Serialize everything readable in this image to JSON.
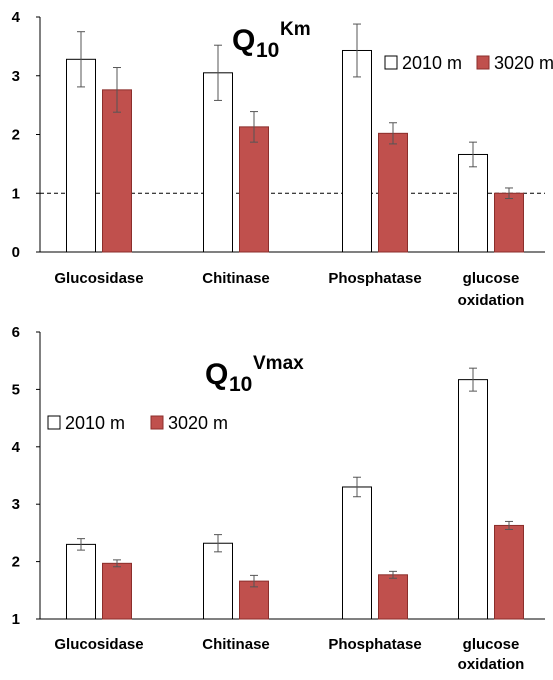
{
  "chart_data": [
    {
      "type": "bar",
      "title": "Q10Km",
      "title_parts": {
        "main": "Q",
        "sub": "10",
        "sup": "Km"
      },
      "categories": [
        "Glucosidase",
        "Chitinase",
        "Phosphatase",
        "glucose oxidation"
      ],
      "series": [
        {
          "name": "2010 m",
          "values": [
            3.28,
            3.05,
            3.43,
            1.66
          ],
          "errors": [
            0.47,
            0.47,
            0.45,
            0.21
          ],
          "color": "#ffffff"
        },
        {
          "name": "3020 m",
          "values": [
            2.76,
            2.13,
            2.02,
            1.0
          ],
          "errors": [
            0.38,
            0.26,
            0.18,
            0.09
          ],
          "color": "#c0504d"
        }
      ],
      "ylim": [
        0,
        4
      ],
      "yticks": [
        "0",
        "1",
        "2",
        "3",
        "4"
      ],
      "reference_line": 1,
      "legend_position": "right",
      "grid": false
    },
    {
      "type": "bar",
      "title": "Q10Vmax",
      "title_parts": {
        "main": "Q",
        "sub": "10",
        "sup": "Vmax"
      },
      "categories": [
        "Glucosidase",
        "Chitinase",
        "Phosphatase",
        "glucose oxidation"
      ],
      "series": [
        {
          "name": "2010 m",
          "values": [
            2.3,
            2.32,
            3.3,
            5.17
          ],
          "errors": [
            0.1,
            0.15,
            0.17,
            0.2
          ],
          "color": "#ffffff"
        },
        {
          "name": "3020 m",
          "values": [
            1.97,
            1.66,
            1.77,
            2.63
          ],
          "errors": [
            0.06,
            0.1,
            0.06,
            0.07
          ],
          "color": "#c0504d"
        }
      ],
      "ylim": [
        1,
        6
      ],
      "yticks": [
        "1",
        "2",
        "3",
        "4",
        "5",
        "6"
      ],
      "legend_position": "left",
      "grid": false
    }
  ]
}
